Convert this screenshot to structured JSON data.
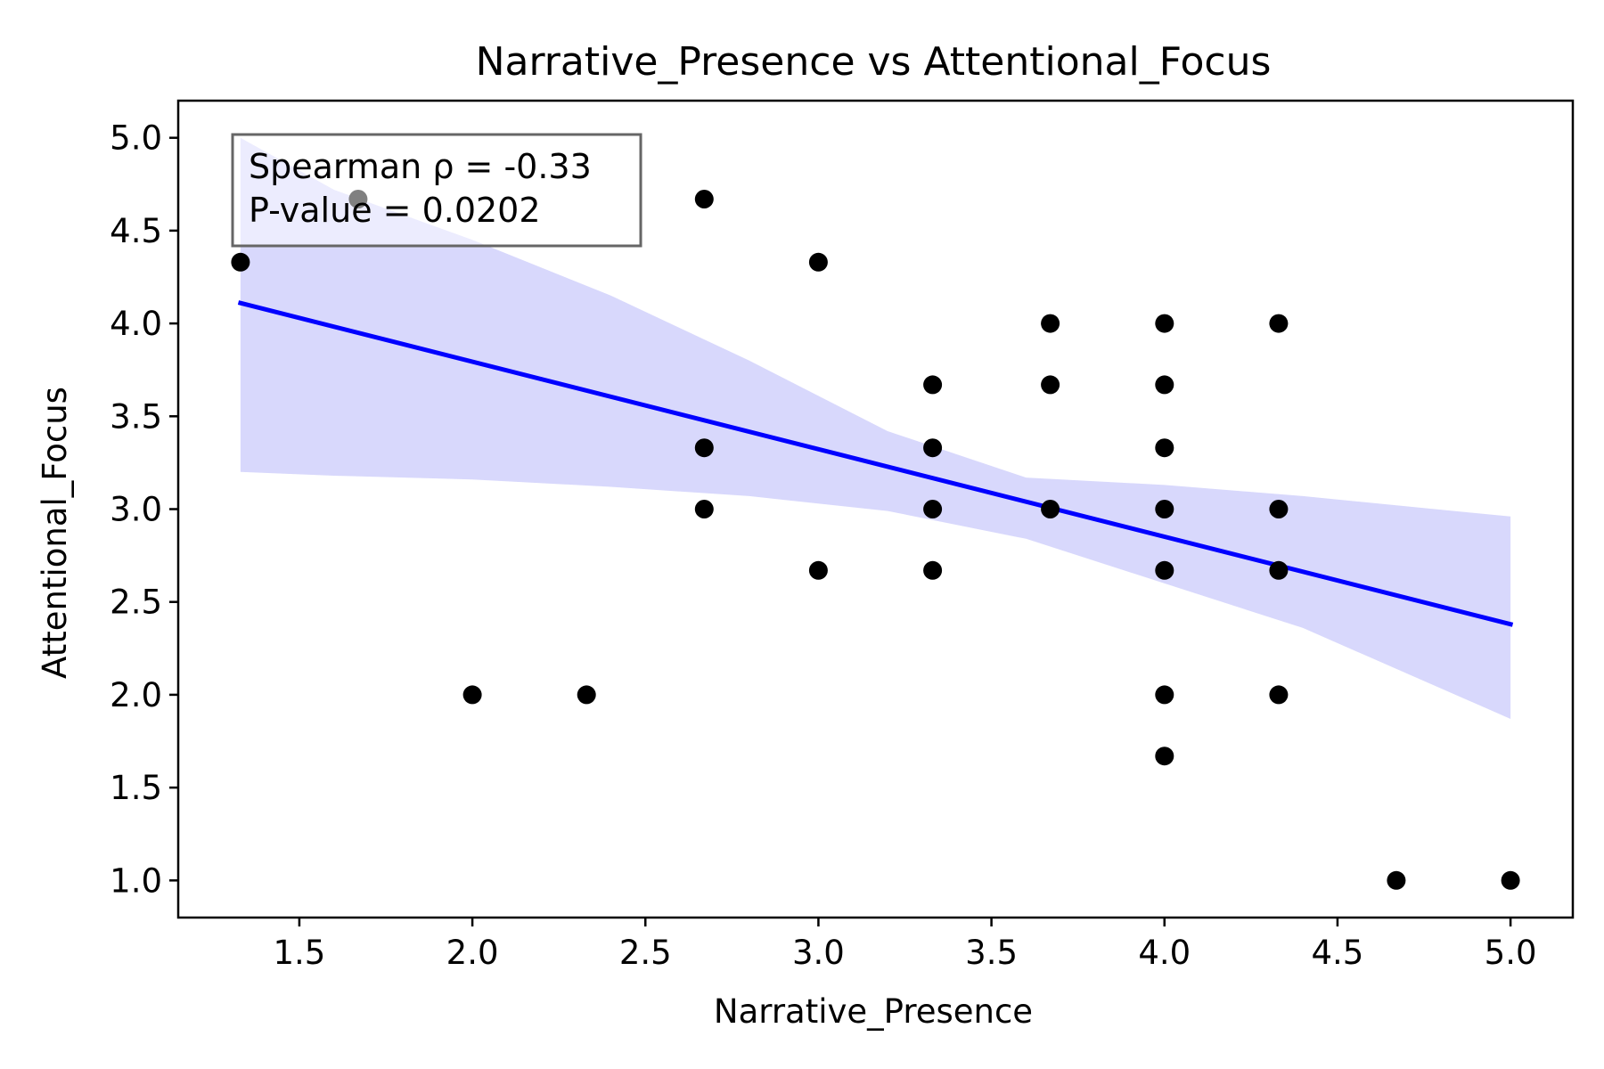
{
  "chart_data": {
    "type": "scatter",
    "title": "Narrative_Presence vs Attentional_Focus",
    "xlabel": "Narrative_Presence",
    "ylabel": "Attentional_Focus",
    "xlim": [
      1.15,
      5.18
    ],
    "ylim": [
      0.8,
      5.2
    ],
    "xticks": [
      1.5,
      2.0,
      2.5,
      3.0,
      3.5,
      4.0,
      4.5,
      5.0
    ],
    "xtick_labels": [
      "1.5",
      "2.0",
      "2.5",
      "3.0",
      "3.5",
      "4.0",
      "4.5",
      "5.0"
    ],
    "yticks": [
      1.0,
      1.5,
      2.0,
      2.5,
      3.0,
      3.5,
      4.0,
      4.5,
      5.0
    ],
    "ytick_labels": [
      "1.0",
      "1.5",
      "2.0",
      "2.5",
      "3.0",
      "3.5",
      "4.0",
      "4.5",
      "5.0"
    ],
    "grid": false,
    "points": {
      "color": "#000000",
      "x": [
        1.33,
        1.67,
        2.0,
        2.33,
        2.67,
        2.67,
        2.67,
        3.0,
        3.0,
        3.33,
        3.33,
        3.33,
        3.33,
        3.67,
        3.67,
        3.67,
        4.0,
        4.0,
        4.0,
        4.0,
        4.0,
        4.0,
        4.0,
        4.33,
        4.33,
        4.33,
        4.33,
        4.67,
        5.0
      ],
      "y": [
        4.33,
        4.67,
        2.0,
        2.0,
        4.67,
        3.33,
        3.0,
        4.33,
        2.67,
        3.67,
        3.33,
        3.0,
        2.67,
        4.0,
        3.67,
        3.0,
        4.0,
        3.67,
        3.33,
        3.0,
        2.67,
        2.0,
        1.67,
        4.0,
        3.0,
        2.67,
        2.0,
        1.0,
        1.0
      ]
    },
    "regression": {
      "color": "#0000ff",
      "x": [
        1.33,
        5.0
      ],
      "y": [
        4.11,
        2.38
      ]
    },
    "confidence_band": {
      "color": "#d8d8fc",
      "x": [
        1.33,
        1.6,
        2.0,
        2.4,
        2.8,
        3.2,
        3.6,
        4.0,
        4.4,
        5.0
      ],
      "upper": [
        5.0,
        4.72,
        4.45,
        4.15,
        3.8,
        3.42,
        3.17,
        3.13,
        3.07,
        2.96
      ],
      "lower": [
        3.2,
        3.18,
        3.16,
        3.12,
        3.07,
        2.99,
        2.84,
        2.6,
        2.36,
        1.87
      ]
    },
    "annotation": {
      "lines": [
        "Spearman ρ = -0.33",
        "P-value = 0.0202"
      ],
      "placement": "top-left"
    }
  }
}
